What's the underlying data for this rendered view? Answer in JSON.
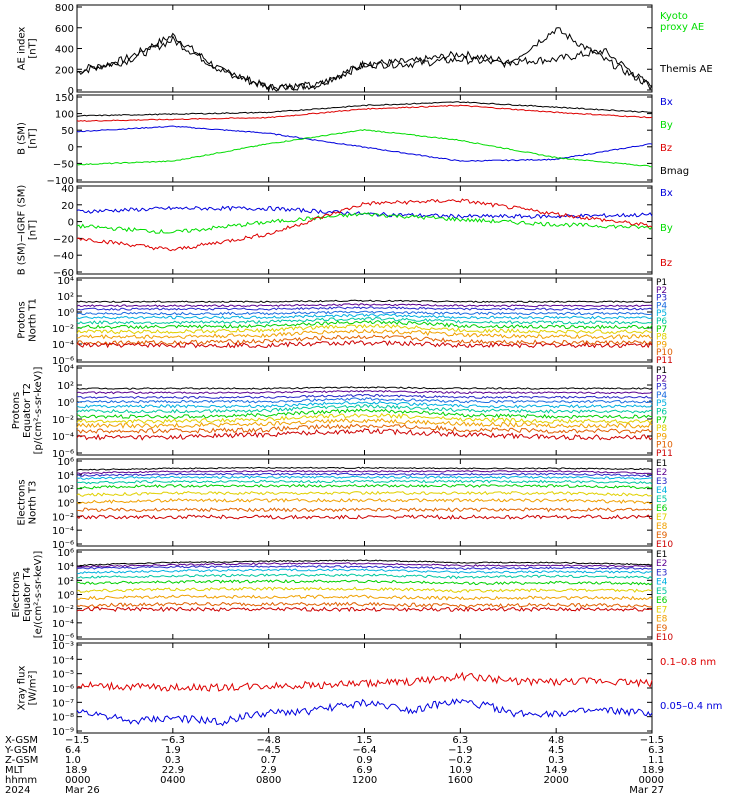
{
  "colors": {
    "black": "#000000",
    "blue": "#0000dd",
    "green": "#00dd00",
    "red": "#dd0000",
    "p_levels": [
      "#000000",
      "#5a0090",
      "#2828c8",
      "#1c6ce0",
      "#00b0e0",
      "#00c8a0",
      "#00d000",
      "#e0d000",
      "#f0a000",
      "#e06000",
      "#cc0000"
    ],
    "e_levels": [
      "#000000",
      "#5a0090",
      "#2828c8",
      "#00b0e0",
      "#00c8a0",
      "#00d000",
      "#e0d000",
      "#f0a000",
      "#e06000",
      "#cc0000"
    ]
  },
  "panels": [
    {
      "id": "ae",
      "ylabel": [
        "AE index",
        "[nT]"
      ],
      "yticks": [
        "800",
        "600",
        "400",
        "200",
        "0"
      ],
      "legend": [
        {
          "text": "Kyoto",
          "color": "green"
        },
        {
          "text": "proxy AE",
          "color": "green"
        },
        {
          "text": "",
          "color": "black"
        },
        {
          "text": "Themis AE",
          "color": "black"
        }
      ]
    },
    {
      "id": "bsm",
      "ylabel": [
        "B (SM)",
        "[nT]"
      ],
      "yticks": [
        "150",
        "100",
        "50",
        "0",
        "−50",
        "−100"
      ],
      "legend": [
        {
          "text": "Bx",
          "color": "blue"
        },
        {
          "text": "By",
          "color": "green"
        },
        {
          "text": "Bz",
          "color": "red"
        },
        {
          "text": "Bmag",
          "color": "black"
        }
      ]
    },
    {
      "id": "bigrf",
      "ylabel": [
        "B (SM)−IGRF (SM)",
        "[nT]"
      ],
      "yticks": [
        "40",
        "20",
        "0",
        "−20",
        "−40",
        "−60"
      ],
      "legend": [
        {
          "text": "Bx",
          "color": "blue"
        },
        {
          "text": "By",
          "color": "green"
        },
        {
          "text": "Bz",
          "color": "red"
        }
      ]
    },
    {
      "id": "pn",
      "ylabel": [
        "Protons",
        "North T1"
      ],
      "yticks": [
        "10⁴",
        "10²",
        "10⁰",
        "10⁻²",
        "10⁻⁴",
        "10⁻⁶"
      ],
      "legend": [
        "P1",
        "P2",
        "P3",
        "P4",
        "P5",
        "P6",
        "P7",
        "P8",
        "P9",
        "P10",
        "P11"
      ]
    },
    {
      "id": "pe",
      "ylabel": [
        "Protons",
        "Equator T2",
        "[p/(cm²-s-sr-keV)]"
      ],
      "yticks": [
        "10⁴",
        "10²",
        "10⁰",
        "10⁻²",
        "10⁻⁴",
        "10⁻⁶"
      ],
      "legend": [
        "P1",
        "P2",
        "P3",
        "P4",
        "P5",
        "P6",
        "P7",
        "P8",
        "P9",
        "P10",
        "P11"
      ]
    },
    {
      "id": "en",
      "ylabel": [
        "Electrons",
        "North T3"
      ],
      "yticks": [
        "10⁶",
        "10⁴",
        "10²",
        "10⁰",
        "10⁻²",
        "10⁻⁴",
        "10⁻⁶"
      ],
      "legend": [
        "E1",
        "E2",
        "E3",
        "E4",
        "E5",
        "E6",
        "E7",
        "E8",
        "E9",
        "E10"
      ]
    },
    {
      "id": "ee",
      "ylabel": [
        "Electrons",
        "Equator T4",
        "[e/(cm²-s-sr-keV)]"
      ],
      "yticks": [
        "10⁶",
        "10⁴",
        "10²",
        "10⁰",
        "10⁻²",
        "10⁻⁴",
        "10⁻⁶"
      ],
      "legend": [
        "E1",
        "E2",
        "E3",
        "E4",
        "E5",
        "E6",
        "E7",
        "E8",
        "E9",
        "E10"
      ]
    },
    {
      "id": "xray",
      "ylabel": [
        "Xray flux",
        "[W/m²]"
      ],
      "yticks": [
        "10⁻³",
        "10⁻⁴",
        "10⁻⁵",
        "10⁻⁶",
        "10⁻⁷",
        "10⁻⁸",
        "10⁻⁹"
      ],
      "legend": [
        {
          "text": "0.1–0.8 nm",
          "color": "red"
        },
        {
          "text": "0.05–0.4 nm",
          "color": "blue"
        }
      ]
    }
  ],
  "footer": {
    "row_labels": [
      "X-GSM",
      "Y-GSM",
      "Z-GSM",
      "MLT",
      "hhmm",
      "2024"
    ],
    "columns": [
      [
        "−1.5",
        "6.4",
        "1.0",
        "18.9",
        "0000",
        "Mar 26"
      ],
      [
        "−6.3",
        "1.9",
        "0.3",
        "22.9",
        "0400",
        ""
      ],
      [
        "−4.8",
        "−4.5",
        "0.7",
        "2.9",
        "0800",
        ""
      ],
      [
        "1.5",
        "−6.4",
        "0.9",
        "6.9",
        "1200",
        ""
      ],
      [
        "6.3",
        "−1.9",
        "−0.2",
        "10.9",
        "1600",
        ""
      ],
      [
        "4.8",
        "4.5",
        "0.3",
        "14.9",
        "2000",
        ""
      ],
      [
        "−1.5",
        "6.3",
        "1.1",
        "18.9",
        "0000",
        "Mar 27"
      ]
    ]
  },
  "chart_data": [
    {
      "type": "line",
      "title": "",
      "xlabel": "hhmm",
      "ylabel": "AE index [nT]",
      "x": [
        "0000",
        "0200",
        "0400",
        "0600",
        "0800",
        "1000",
        "1200",
        "1400",
        "1600",
        "1800",
        "2000",
        "2200",
        "2400"
      ],
      "ylim": [
        0,
        800
      ],
      "series": [
        {
          "name": "Kyoto proxy AE",
          "values": [
            180,
            300,
            520,
            200,
            40,
            60,
            260,
            280,
            350,
            280,
            300,
            380,
            40
          ]
        },
        {
          "name": "Themis AE",
          "values": [
            200,
            280,
            480,
            200,
            50,
            60,
            250,
            260,
            300,
            260,
            580,
            300,
            50
          ]
        }
      ]
    },
    {
      "type": "line",
      "title": "",
      "xlabel": "hhmm",
      "ylabel": "B (SM) [nT]",
      "x": [
        "0000",
        "0400",
        "0800",
        "1200",
        "1600",
        "2000",
        "2400"
      ],
      "ylim": [
        -100,
        150
      ],
      "series": [
        {
          "name": "Bx",
          "values": [
            45,
            60,
            40,
            0,
            -40,
            -35,
            10
          ]
        },
        {
          "name": "By",
          "values": [
            -50,
            -40,
            10,
            50,
            20,
            -30,
            -55
          ]
        },
        {
          "name": "Bz",
          "values": [
            75,
            80,
            85,
            110,
            120,
            100,
            85
          ]
        },
        {
          "name": "Bmag",
          "values": [
            90,
            95,
            100,
            120,
            130,
            115,
            100
          ]
        }
      ]
    },
    {
      "type": "line",
      "title": "",
      "xlabel": "hhmm",
      "ylabel": "B (SM)−IGRF (SM) [nT]",
      "x": [
        "0000",
        "0400",
        "0800",
        "1200",
        "1600",
        "2000",
        "2400"
      ],
      "ylim": [
        -70,
        40
      ],
      "series": [
        {
          "name": "Bx",
          "values": [
            8,
            12,
            12,
            5,
            2,
            2,
            4
          ]
        },
        {
          "name": "By",
          "values": [
            -10,
            -18,
            -5,
            5,
            -2,
            -8,
            -12
          ]
        },
        {
          "name": "Bz",
          "values": [
            -25,
            -40,
            -20,
            18,
            22,
            5,
            -10
          ]
        }
      ]
    },
    {
      "type": "line",
      "title": "",
      "xlabel": "hhmm",
      "ylabel": "Protons North T1",
      "x": [
        "0000",
        "0400",
        "0800",
        "1200",
        "1600",
        "2000",
        "2400"
      ],
      "ylim": [
        "1e-6",
        "1e4"
      ],
      "yscale": "log",
      "series": [
        {
          "name": "P1",
          "values": [
            15,
            15,
            15,
            20,
            15,
            15,
            15
          ]
        },
        {
          "name": "P2",
          "values": [
            5,
            5,
            5,
            7,
            5,
            5,
            5
          ]
        },
        {
          "name": "P3",
          "values": [
            2,
            2,
            2,
            3,
            2,
            2,
            2
          ]
        },
        {
          "name": "P4",
          "values": [
            0.6,
            0.6,
            0.6,
            0.9,
            0.6,
            0.6,
            0.6
          ]
        },
        {
          "name": "P5",
          "values": [
            0.2,
            0.2,
            0.2,
            0.4,
            0.2,
            0.2,
            0.2
          ]
        },
        {
          "name": "P6",
          "values": [
            0.05,
            0.05,
            0.06,
            0.15,
            0.06,
            0.05,
            0.05
          ]
        },
        {
          "name": "P7",
          "values": [
            0.015,
            0.015,
            0.02,
            0.06,
            0.02,
            0.015,
            0.015
          ]
        },
        {
          "name": "P8",
          "values": [
            0.004,
            0.004,
            0.006,
            0.02,
            0.006,
            0.004,
            0.004
          ]
        },
        {
          "name": "P9",
          "values": [
            0.001,
            0.001,
            0.0015,
            0.005,
            0.0015,
            0.001,
            0.001
          ]
        },
        {
          "name": "P10",
          "values": [
            0.0002,
            0.0002,
            0.0003,
            0.001,
            0.0003,
            0.0002,
            0.0002
          ]
        },
        {
          "name": "P11",
          "values": [
            0.0001,
            0.0001,
            0.0001,
            0.0002,
            0.0001,
            0.0001,
            0.0001
          ]
        }
      ]
    },
    {
      "type": "line",
      "title": "",
      "xlabel": "hhmm",
      "ylabel": "Protons Equator T2 [p/(cm²-s-sr-keV)]",
      "x": [
        "0000",
        "0400",
        "0800",
        "1200",
        "1600",
        "2000",
        "2400"
      ],
      "ylim": [
        "1e-6",
        "1e4"
      ],
      "yscale": "log",
      "series": [
        {
          "name": "P1",
          "values": [
            30,
            30,
            30,
            40,
            30,
            30,
            30
          ]
        },
        {
          "name": "P2",
          "values": [
            10,
            10,
            10,
            15,
            10,
            10,
            10
          ]
        },
        {
          "name": "P3",
          "values": [
            3,
            3,
            3,
            5,
            3,
            3,
            3
          ]
        },
        {
          "name": "P4",
          "values": [
            1,
            1,
            1,
            2,
            1,
            1,
            1
          ]
        },
        {
          "name": "P5",
          "values": [
            0.3,
            0.3,
            0.3,
            0.8,
            0.3,
            0.3,
            0.3
          ]
        },
        {
          "name": "P6",
          "values": [
            0.08,
            0.08,
            0.1,
            0.3,
            0.1,
            0.08,
            0.08
          ]
        },
        {
          "name": "P7",
          "values": [
            0.02,
            0.02,
            0.03,
            0.1,
            0.03,
            0.02,
            0.02
          ]
        },
        {
          "name": "P8",
          "values": [
            0.006,
            0.006,
            0.01,
            0.03,
            0.01,
            0.006,
            0.006
          ]
        },
        {
          "name": "P9",
          "values": [
            0.002,
            0.002,
            0.003,
            0.008,
            0.003,
            0.002,
            0.002
          ]
        },
        {
          "name": "P10",
          "values": [
            0.0005,
            0.0005,
            0.0007,
            0.002,
            0.0007,
            0.0005,
            0.0005
          ]
        },
        {
          "name": "P11",
          "values": [
            0.0001,
            0.0001,
            0.0002,
            0.0005,
            0.0002,
            0.0001,
            0.0001
          ]
        }
      ]
    },
    {
      "type": "line",
      "title": "",
      "xlabel": "hhmm",
      "ylabel": "Electrons North T3",
      "x": [
        "0000",
        "0400",
        "0800",
        "1200",
        "1600",
        "2000",
        "2400"
      ],
      "ylim": [
        "1e-6",
        "1e6"
      ],
      "yscale": "log",
      "series": [
        {
          "name": "E1",
          "values": [
            30000,
            50000,
            60000,
            60000,
            50000,
            50000,
            40000
          ]
        },
        {
          "name": "E2",
          "values": [
            10000,
            20000,
            20000,
            20000,
            20000,
            20000,
            10000
          ]
        },
        {
          "name": "E3",
          "values": [
            5000,
            8000,
            8000,
            8000,
            8000,
            8000,
            5000
          ]
        },
        {
          "name": "E4",
          "values": [
            2000,
            3000,
            3000,
            3000,
            3000,
            3000,
            2000
          ]
        },
        {
          "name": "E5",
          "values": [
            500,
            800,
            800,
            800,
            800,
            800,
            500
          ]
        },
        {
          "name": "E6",
          "values": [
            100,
            200,
            200,
            200,
            200,
            200,
            100
          ]
        },
        {
          "name": "E7",
          "values": [
            10,
            20,
            20,
            20,
            20,
            20,
            10
          ]
        },
        {
          "name": "E8",
          "values": [
            1,
            2,
            2,
            2,
            2,
            2,
            1
          ]
        },
        {
          "name": "E9",
          "values": [
            0.1,
            0.1,
            0.1,
            0.1,
            0.1,
            0.1,
            0.1
          ]
        },
        {
          "name": "E10",
          "values": [
            0.01,
            0.01,
            0.01,
            0.01,
            0.01,
            0.01,
            0.01
          ]
        }
      ]
    },
    {
      "type": "line",
      "title": "",
      "xlabel": "hhmm",
      "ylabel": "Electrons Equator T4 [e/(cm²-s-sr-keV)]",
      "x": [
        "0000",
        "0400",
        "0800",
        "1200",
        "1600",
        "2000",
        "2400"
      ],
      "ylim": [
        "1e-6",
        "1e6"
      ],
      "yscale": "log",
      "series": [
        {
          "name": "E1",
          "values": [
            8000,
            20000,
            30000,
            40000,
            20000,
            20000,
            10000
          ]
        },
        {
          "name": "E2",
          "values": [
            5000,
            10000,
            15000,
            15000,
            8000,
            8000,
            6000
          ]
        },
        {
          "name": "E3",
          "values": [
            3000,
            5000,
            6000,
            6000,
            3000,
            4000,
            3000
          ]
        },
        {
          "name": "E4",
          "values": [
            800,
            1500,
            2000,
            2000,
            1000,
            1200,
            1000
          ]
        },
        {
          "name": "E5",
          "values": [
            200,
            300,
            400,
            400,
            200,
            300,
            200
          ]
        },
        {
          "name": "E6",
          "values": [
            30,
            50,
            60,
            60,
            30,
            40,
            30
          ]
        },
        {
          "name": "E7",
          "values": [
            3,
            5,
            6,
            6,
            3,
            4,
            3
          ]
        },
        {
          "name": "E8",
          "values": [
            0.3,
            0.5,
            0.5,
            0.5,
            0.3,
            0.4,
            0.3
          ]
        },
        {
          "name": "E9",
          "values": [
            0.03,
            0.05,
            0.05,
            0.05,
            0.03,
            0.04,
            0.03
          ]
        },
        {
          "name": "E10",
          "values": [
            0.01,
            0.01,
            0.01,
            0.01,
            0.01,
            0.01,
            0.01
          ]
        }
      ]
    },
    {
      "type": "line",
      "title": "",
      "xlabel": "hhmm",
      "ylabel": "Xray flux [W/m²]",
      "x": [
        "0000",
        "0200",
        "0400",
        "0600",
        "0800",
        "1000",
        "1200",
        "1400",
        "1600",
        "1800",
        "2000",
        "2200",
        "2400"
      ],
      "ylim": [
        "1e-9",
        "1e-3"
      ],
      "yscale": "log",
      "series": [
        {
          "name": "0.1–0.8 nm",
          "values": [
            "1.5e-6",
            "1.2e-6",
            "1.1e-6",
            "1.1e-6",
            "1.4e-6",
            "1.6e-6",
            "2e-6",
            "2.5e-6",
            "6e-6",
            "3e-6",
            "2.5e-6",
            "3e-6",
            "2e-6"
          ]
        },
        {
          "name": "0.05–0.4 nm",
          "values": [
            "3e-8",
            "5e-9",
            "1e-8",
            "5e-9",
            "2e-8",
            "3e-8",
            "1e-7",
            "3e-8",
            "1.2e-7",
            "2e-8",
            "2e-8",
            "3e-8",
            "2e-8"
          ]
        }
      ]
    }
  ]
}
